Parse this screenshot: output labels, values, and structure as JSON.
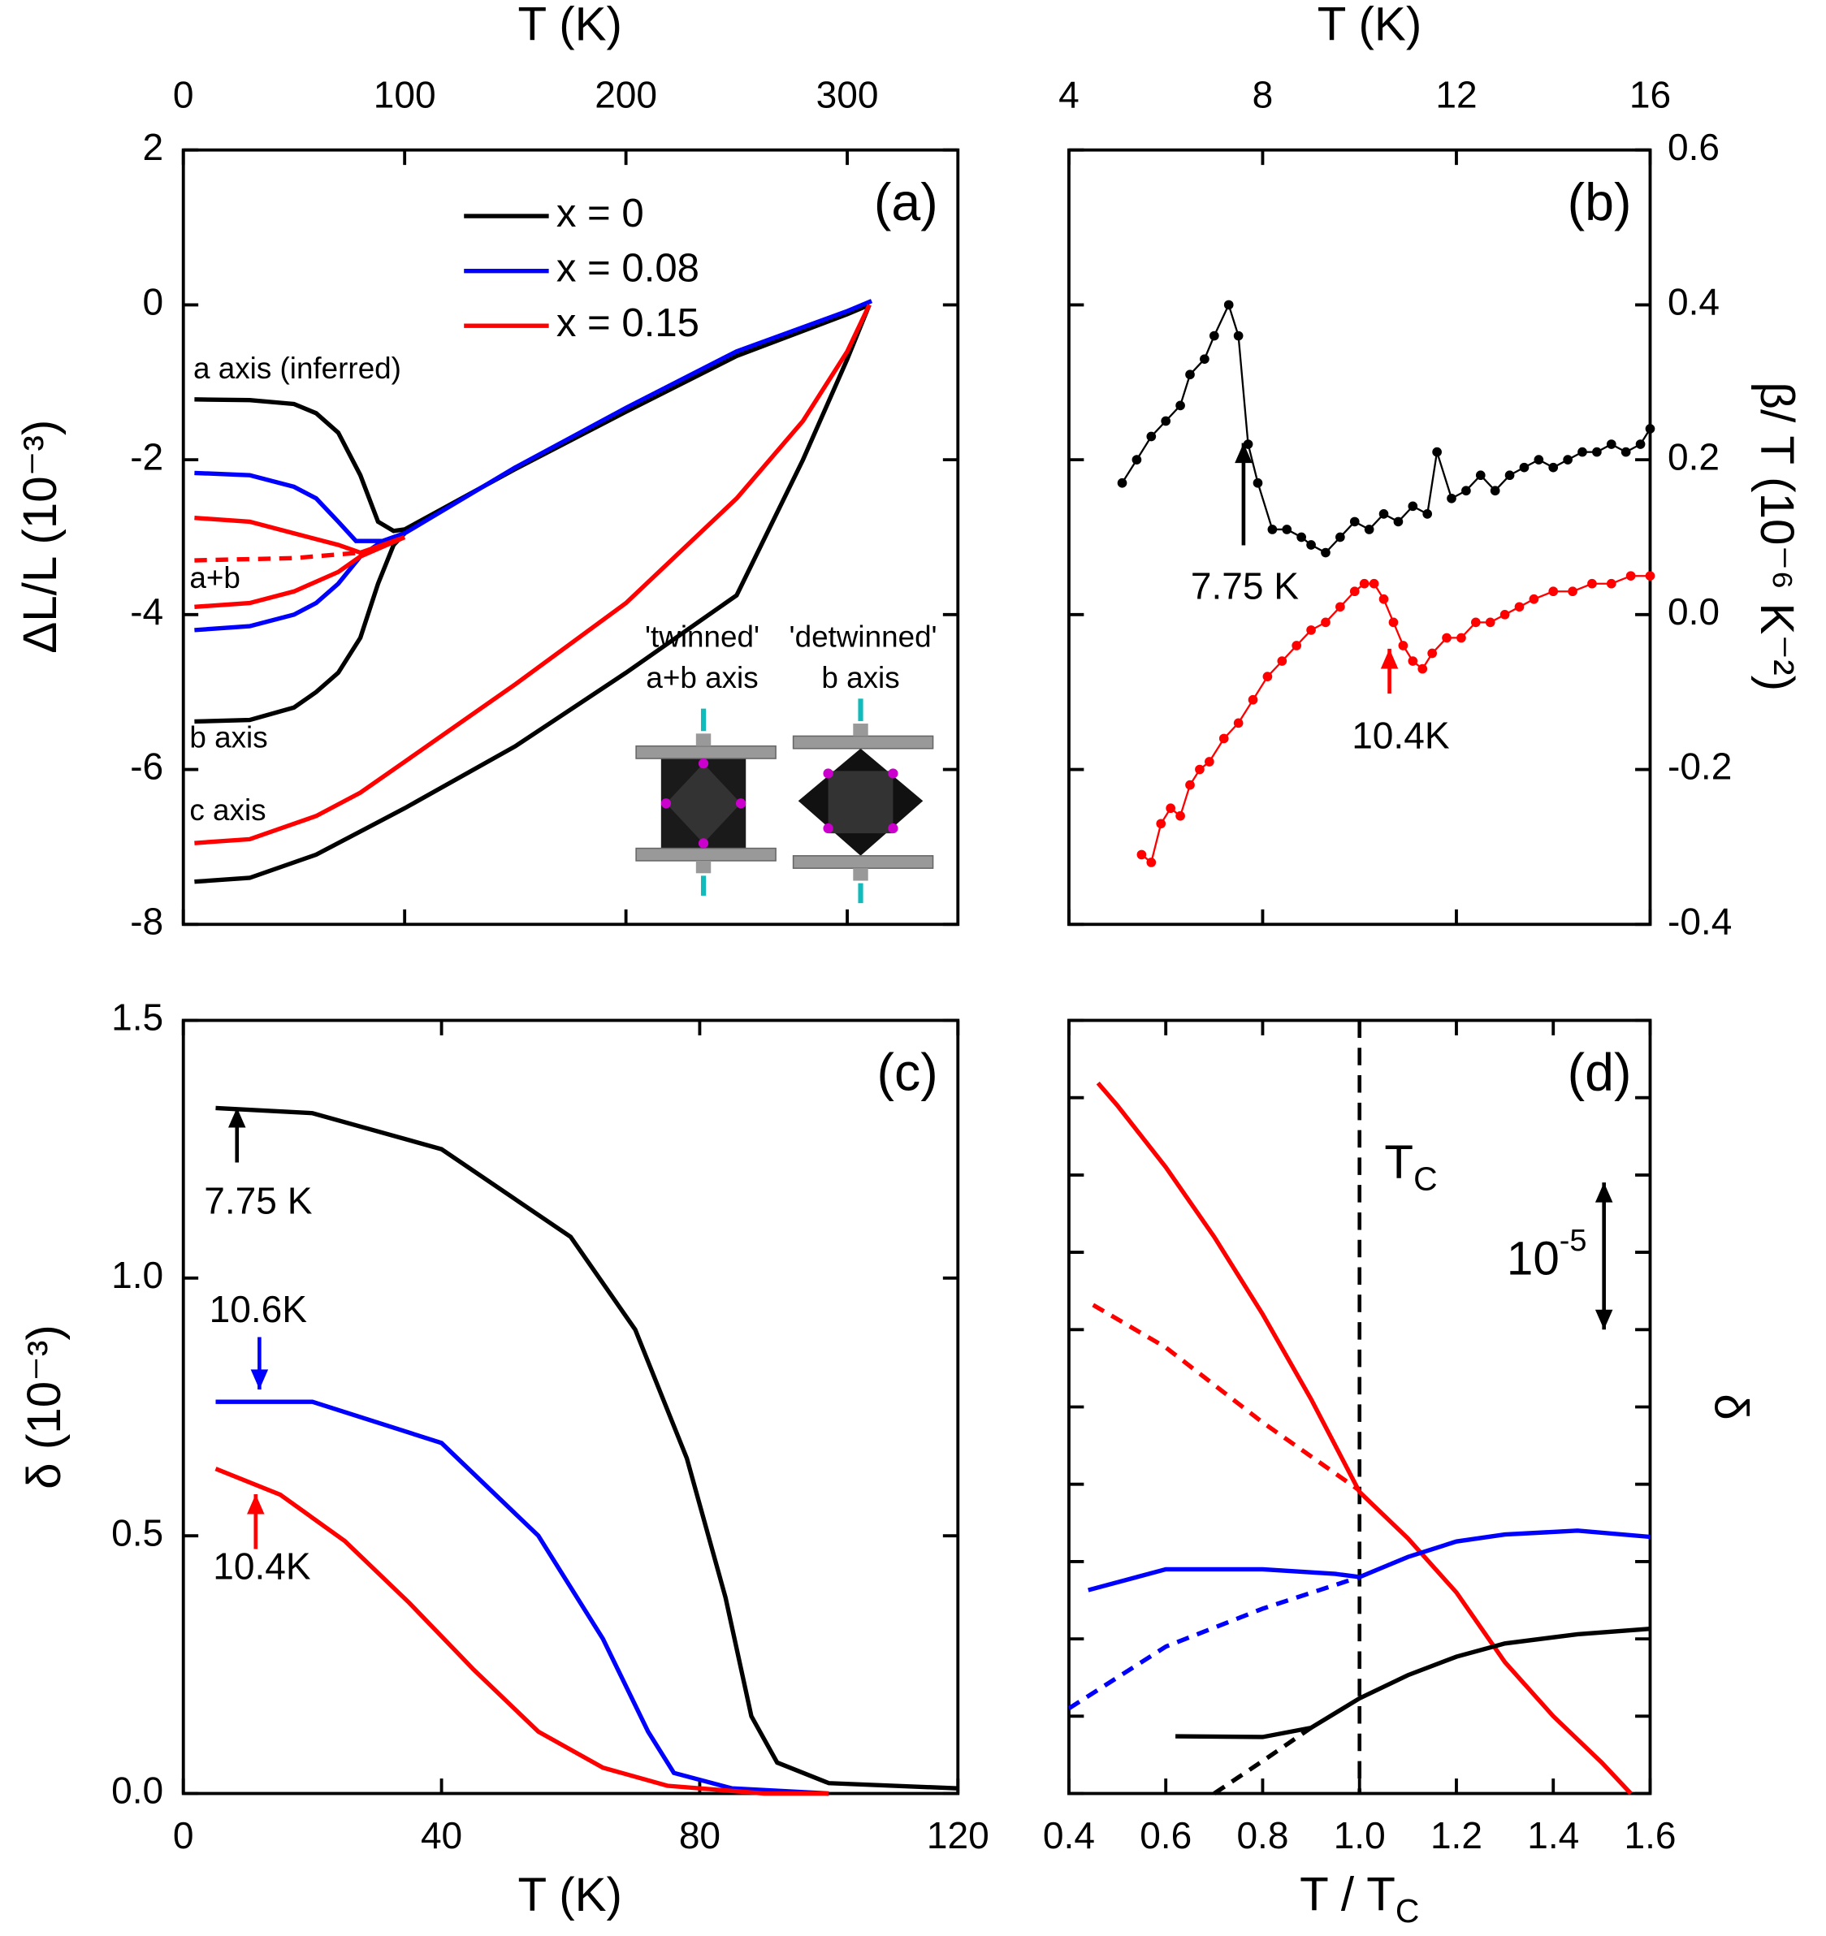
{
  "chart_data": [
    {
      "type": "line",
      "panel": "(a)",
      "xlabel": "T (K)",
      "ylabel": "ΔL/L (10⁻³)",
      "x_axis_side": "top",
      "y_axis_side": "left",
      "legend": "upper center",
      "xlim": [
        0,
        350
      ],
      "xticks": [
        0,
        100,
        200,
        300
      ],
      "ylim": [
        -8,
        2
      ],
      "yticks": [
        -8,
        -6,
        -4,
        -2,
        0,
        2
      ],
      "series": [
        {
          "name": "x = 0",
          "color": "#000000",
          "x": [
            5,
            30,
            50,
            60,
            70,
            80,
            88,
            95,
            100,
            150,
            200,
            250,
            300,
            310
          ],
          "values": [
            -1.22,
            -1.23,
            -1.28,
            -1.4,
            -1.65,
            -2.2,
            -2.8,
            -2.92,
            -2.9,
            -2.12,
            -1.38,
            -0.66,
            -0.12,
            0
          ]
        },
        {
          "name": "x = 0",
          "color": "#000000",
          "x": [
            5,
            30,
            50,
            60,
            70,
            80,
            88,
            95,
            100
          ],
          "values": [
            -5.38,
            -5.36,
            -5.2,
            -5.0,
            -4.75,
            -4.3,
            -3.6,
            -3.1,
            -2.95
          ]
        },
        {
          "name": "x = 0",
          "color": "#000000",
          "x": [
            5,
            30,
            60,
            100,
            150,
            200,
            250,
            280,
            300,
            310
          ],
          "values": [
            -7.45,
            -7.4,
            -7.1,
            -6.5,
            -5.7,
            -4.75,
            -3.75,
            -2.0,
            -0.7,
            0
          ]
        },
        {
          "name": "x = 0.08",
          "color": "#0000ff",
          "x": [
            5,
            30,
            50,
            60,
            70,
            78,
            90,
            100,
            150,
            200,
            250,
            300,
            311
          ],
          "values": [
            -2.17,
            -2.2,
            -2.35,
            -2.5,
            -2.8,
            -3.05,
            -3.05,
            -2.95,
            -2.1,
            -1.33,
            -0.6,
            -0.08,
            0.05
          ]
        },
        {
          "name": "x = 0.08",
          "color": "#0000ff",
          "x": [
            5,
            30,
            50,
            60,
            70,
            80,
            90,
            100
          ],
          "values": [
            -4.2,
            -4.15,
            -4.0,
            -3.85,
            -3.6,
            -3.25,
            -3.05,
            -2.95
          ]
        },
        {
          "name": "x = 0.15",
          "color": "#ff0000",
          "x": [
            5,
            30,
            50,
            70,
            80,
            100
          ],
          "values": [
            -2.75,
            -2.8,
            -2.95,
            -3.1,
            -3.2,
            -3.0
          ]
        },
        {
          "name": "x = 0.15",
          "color": "#ff0000",
          "x": [
            5,
            30,
            50,
            70,
            80,
            100
          ],
          "values": [
            -3.9,
            -3.85,
            -3.7,
            -3.45,
            -3.25,
            -3.0
          ]
        },
        {
          "name": "x = 0.15",
          "color": "#ff0000",
          "dashed": true,
          "x": [
            5,
            50,
            80
          ],
          "values": [
            -3.3,
            -3.27,
            -3.2
          ]
        },
        {
          "name": "x = 0.15",
          "color": "#ff0000",
          "x": [
            5,
            30,
            60,
            80,
            100,
            150,
            200,
            250,
            280,
            300,
            310
          ],
          "values": [
            -6.95,
            -6.9,
            -6.6,
            -6.3,
            -5.9,
            -4.9,
            -3.85,
            -2.5,
            -1.5,
            -0.6,
            0
          ]
        }
      ],
      "annotations": [
        "a axis (inferred)",
        "a+b",
        "b axis",
        "c axis",
        "'twinned'",
        "a+b axis",
        "'detwinned'",
        "b axis"
      ]
    },
    {
      "type": "line",
      "markers": true,
      "panel": "(b)",
      "xlabel": "T (K)",
      "ylabel": "β/ T (10⁻⁶ K⁻²)",
      "x_axis_side": "top",
      "y_axis_side": "right",
      "xlim": [
        4,
        16
      ],
      "xticks": [
        4,
        8,
        12,
        16
      ],
      "ylim": [
        -0.4,
        0.6
      ],
      "yticks": [
        -0.4,
        -0.2,
        {
          "value": 0,
          "label": "0.0"
        },
        0.2,
        0.4,
        0.6
      ],
      "series": [
        {
          "color": "#000000",
          "x": [
            5.1,
            5.4,
            5.7,
            6.0,
            6.3,
            6.5,
            6.8,
            7.0,
            7.3,
            7.5,
            7.7,
            7.9,
            8.2,
            8.5,
            8.8,
            9.0,
            9.3,
            9.6,
            9.9,
            10.2,
            10.5,
            10.8,
            11.1,
            11.4,
            11.6,
            11.9,
            12.2,
            12.5,
            12.8,
            13.1,
            13.4,
            13.7,
            14.0,
            14.3,
            14.6,
            14.9,
            15.2,
            15.5,
            15.8,
            16.0
          ],
          "values": [
            0.17,
            0.2,
            0.23,
            0.25,
            0.27,
            0.31,
            0.33,
            0.36,
            0.4,
            0.36,
            0.22,
            0.17,
            0.11,
            0.11,
            0.1,
            0.09,
            0.08,
            0.1,
            0.12,
            0.11,
            0.13,
            0.12,
            0.14,
            0.13,
            0.21,
            0.15,
            0.16,
            0.18,
            0.16,
            0.18,
            0.19,
            0.2,
            0.19,
            0.2,
            0.21,
            0.21,
            0.22,
            0.21,
            0.22,
            0.24
          ]
        },
        {
          "color": "#ff0000",
          "x": [
            5.5,
            5.7,
            5.9,
            6.1,
            6.3,
            6.5,
            6.7,
            6.9,
            7.2,
            7.5,
            7.8,
            8.1,
            8.4,
            8.7,
            9.0,
            9.3,
            9.6,
            9.9,
            10.1,
            10.3,
            10.5,
            10.7,
            10.9,
            11.1,
            11.3,
            11.5,
            11.8,
            12.1,
            12.4,
            12.7,
            13.0,
            13.3,
            13.6,
            14.0,
            14.4,
            14.8,
            15.2,
            15.6,
            16.0
          ],
          "values": [
            -0.31,
            -0.32,
            -0.27,
            -0.25,
            -0.26,
            -0.22,
            -0.2,
            -0.19,
            -0.16,
            -0.14,
            -0.11,
            -0.08,
            -0.06,
            -0.04,
            -0.02,
            -0.01,
            0.01,
            0.03,
            0.04,
            0.04,
            0.02,
            -0.01,
            -0.04,
            -0.06,
            -0.07,
            -0.05,
            -0.03,
            -0.03,
            -0.01,
            -0.01,
            0,
            0.01,
            0.02,
            0.03,
            0.03,
            0.04,
            0.04,
            0.05,
            0.05
          ]
        }
      ],
      "annotations": [
        "7.75 K",
        "10.4K"
      ]
    },
    {
      "type": "line",
      "panel": "(c)",
      "xlabel": "T (K)",
      "ylabel": "δ (10⁻³)",
      "x_axis_side": "bottom",
      "y_axis_side": "left",
      "xlim": [
        0,
        120
      ],
      "xticks": [
        0,
        40,
        80,
        120
      ],
      "ylim": [
        0,
        1.5
      ],
      "yticks": [
        {
          "value": 0,
          "label": "0.0"
        },
        0.5,
        {
          "value": 1,
          "label": "1.0"
        },
        1.5
      ],
      "series": [
        {
          "color": "#000000",
          "x": [
            5,
            20,
            40,
            60,
            70,
            78,
            84,
            88,
            92,
            100,
            120
          ],
          "values": [
            1.33,
            1.32,
            1.25,
            1.08,
            0.9,
            0.65,
            0.38,
            0.15,
            0.06,
            0.02,
            0.01
          ]
        },
        {
          "color": "#0000ff",
          "x": [
            5,
            20,
            40,
            55,
            65,
            72,
            76,
            85,
            100
          ],
          "values": [
            0.76,
            0.76,
            0.68,
            0.5,
            0.3,
            0.12,
            0.04,
            0.01,
            0
          ]
        },
        {
          "color": "#ff0000",
          "x": [
            5,
            15,
            25,
            35,
            45,
            55,
            65,
            75,
            90,
            100
          ],
          "values": [
            0.63,
            0.58,
            0.49,
            0.37,
            0.24,
            0.12,
            0.05,
            0.015,
            0,
            0
          ]
        }
      ],
      "annotations": [
        "7.75 K",
        "10.6K",
        "10.4K"
      ]
    },
    {
      "type": "line",
      "panel": "(d)",
      "xlabel": {
        "text": "T / T",
        "sub": "C"
      },
      "ylabel": "δ",
      "x_axis_side": "bottom",
      "y_axis_side": "right",
      "xlim": [
        0.4,
        1.6
      ],
      "xticks": [
        0.4,
        0.6,
        0.8,
        {
          "value": 1,
          "label": "1.0"
        },
        1.2,
        1.4,
        1.6
      ],
      "ylim": [
        0,
        10
      ],
      "yticks": [
        0,
        1,
        2,
        3,
        4,
        5,
        6,
        7,
        8,
        9,
        10
      ],
      "ytick_labels": false,
      "vline": 1,
      "series": [
        {
          "color": "#ff0000",
          "x": [
            0.46,
            0.5,
            0.6,
            0.7,
            0.8,
            0.9,
            1.0,
            1.1,
            1.2,
            1.3,
            1.4,
            1.5,
            1.56
          ],
          "values": [
            9.19,
            8.9,
            8.1,
            7.2,
            6.2,
            5.1,
            3.9,
            3.3,
            2.6,
            1.7,
            1.0,
            0.4,
            0
          ]
        },
        {
          "color": "#ff0000",
          "dashed": true,
          "x": [
            0.45,
            0.6,
            0.8,
            1.0
          ],
          "values": [
            6.32,
            5.77,
            4.8,
            3.92
          ]
        },
        {
          "color": "#0000ff",
          "x": [
            0.44,
            0.6,
            0.8,
            0.95,
            1.0,
            1.1,
            1.2,
            1.3,
            1.45,
            1.6
          ],
          "values": [
            2.63,
            2.9,
            2.9,
            2.84,
            2.8,
            3.06,
            3.26,
            3.35,
            3.4,
            3.32
          ]
        },
        {
          "color": "#0000ff",
          "dashed": true,
          "x": [
            0.4,
            0.6,
            0.8,
            1.0
          ],
          "values": [
            1.1,
            1.9,
            2.39,
            2.8
          ]
        },
        {
          "color": "#000000",
          "x": [
            0.62,
            0.8,
            0.9,
            1.0,
            1.1,
            1.2,
            1.3,
            1.45,
            1.6
          ],
          "values": [
            0.74,
            0.73,
            0.85,
            1.23,
            1.53,
            1.77,
            1.94,
            2.06,
            2.13
          ]
        },
        {
          "color": "#000000",
          "dashed": true,
          "x": [
            0.7,
            0.8,
            0.9
          ],
          "values": [
            0,
            0.42,
            0.85
          ]
        }
      ],
      "annotations": [
        {
          "text": "T",
          "sub": "C"
        },
        {
          "text": "10",
          "sup": "-5"
        }
      ]
    }
  ]
}
